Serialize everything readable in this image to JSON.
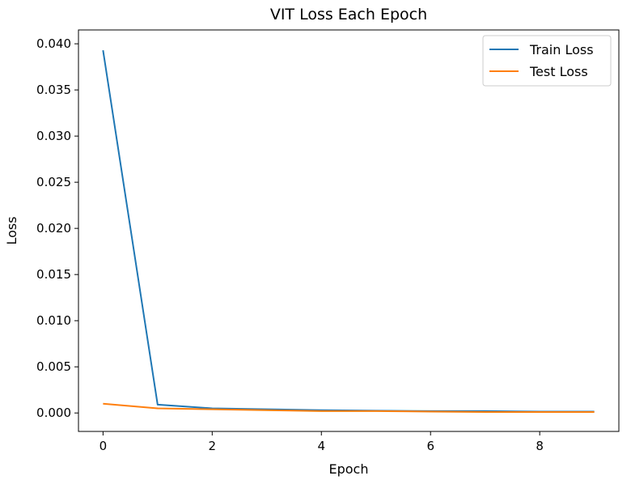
{
  "chart_data": {
    "type": "line",
    "title": "VIT Loss Each Epoch",
    "xlabel": "Epoch",
    "ylabel": "Loss",
    "x": [
      0,
      1,
      2,
      3,
      4,
      5,
      6,
      7,
      8,
      9
    ],
    "xlim": [
      -0.45,
      9.45
    ],
    "ylim": [
      -0.002,
      0.0415
    ],
    "xticks": [
      0,
      2,
      4,
      6,
      8
    ],
    "xtick_labels": [
      "0",
      "2",
      "4",
      "6",
      "8"
    ],
    "yticks": [
      0.0,
      0.005,
      0.01,
      0.015,
      0.02,
      0.025,
      0.03,
      0.035,
      0.04
    ],
    "ytick_labels": [
      "0.000",
      "0.005",
      "0.010",
      "0.015",
      "0.020",
      "0.025",
      "0.030",
      "0.035",
      "0.040"
    ],
    "grid": false,
    "legend_position": "top-right",
    "series": [
      {
        "name": "Train Loss",
        "color": "#1f77b4",
        "values": [
          0.0393,
          0.0009,
          0.0005,
          0.0004,
          0.0003,
          0.00025,
          0.0002,
          0.0002,
          0.00015,
          0.00015
        ]
      },
      {
        "name": "Test Loss",
        "color": "#ff7f0e",
        "values": [
          0.001,
          0.0005,
          0.0004,
          0.0003,
          0.0002,
          0.0002,
          0.00015,
          0.0001,
          0.0001,
          0.0001
        ]
      }
    ]
  }
}
